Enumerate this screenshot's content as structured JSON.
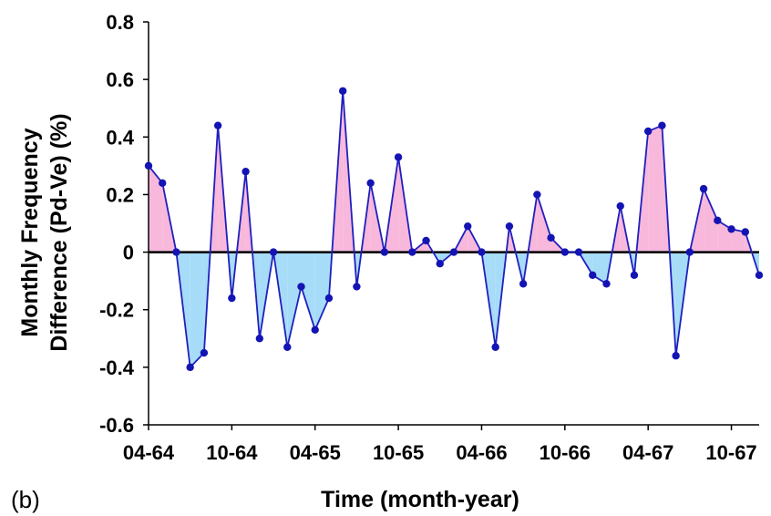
{
  "panel_label": "(b)",
  "colors": {
    "line": "#1f1fbf",
    "marker": "#1414b4",
    "positive_fill": "#f7b8dc",
    "negative_fill": "#a6dcf7",
    "zero_line": "#000000",
    "axis": "#000000"
  },
  "chart_data": {
    "type": "area",
    "xlabel": "Time (month-year)",
    "ylabel_lines": [
      "Monthly Frequency",
      "Difference (Pd-Ve)  (%)"
    ],
    "ylim": [
      -0.6,
      0.8
    ],
    "yticks": [
      "-0.6",
      "-0.4",
      "-0.2",
      "0",
      "0.2",
      "0.4",
      "0.6",
      "0.8"
    ],
    "ytick_values": [
      -0.6,
      -0.4,
      -0.2,
      0,
      0.2,
      0.4,
      0.6,
      0.8
    ],
    "xticks": [
      {
        "label": "04-64",
        "index": 0
      },
      {
        "label": "10-64",
        "index": 6
      },
      {
        "label": "04-65",
        "index": 12
      },
      {
        "label": "10-65",
        "index": 18
      },
      {
        "label": "04-66",
        "index": 24
      },
      {
        "label": "10-66",
        "index": 30
      },
      {
        "label": "04-67",
        "index": 36
      },
      {
        "label": "10-67",
        "index": 42
      }
    ],
    "x_index_range": [
      0,
      44
    ],
    "series": [
      {
        "values": [
          0.3,
          0.24,
          0.0,
          -0.4,
          -0.35,
          0.44,
          -0.16,
          0.28,
          -0.3,
          0.0,
          -0.33,
          -0.12,
          -0.27,
          -0.16,
          0.56,
          -0.12,
          0.24,
          0.0,
          0.33,
          0.0,
          0.04,
          -0.04,
          0.0,
          0.09,
          0.0,
          -0.33,
          0.09,
          -0.11,
          0.2,
          0.05,
          0.0,
          0.0,
          -0.08,
          -0.11,
          0.16,
          -0.08,
          0.42,
          0.44,
          -0.36,
          0.0,
          0.22,
          0.11,
          0.08,
          0.07,
          -0.08
        ]
      }
    ],
    "grid": false
  }
}
